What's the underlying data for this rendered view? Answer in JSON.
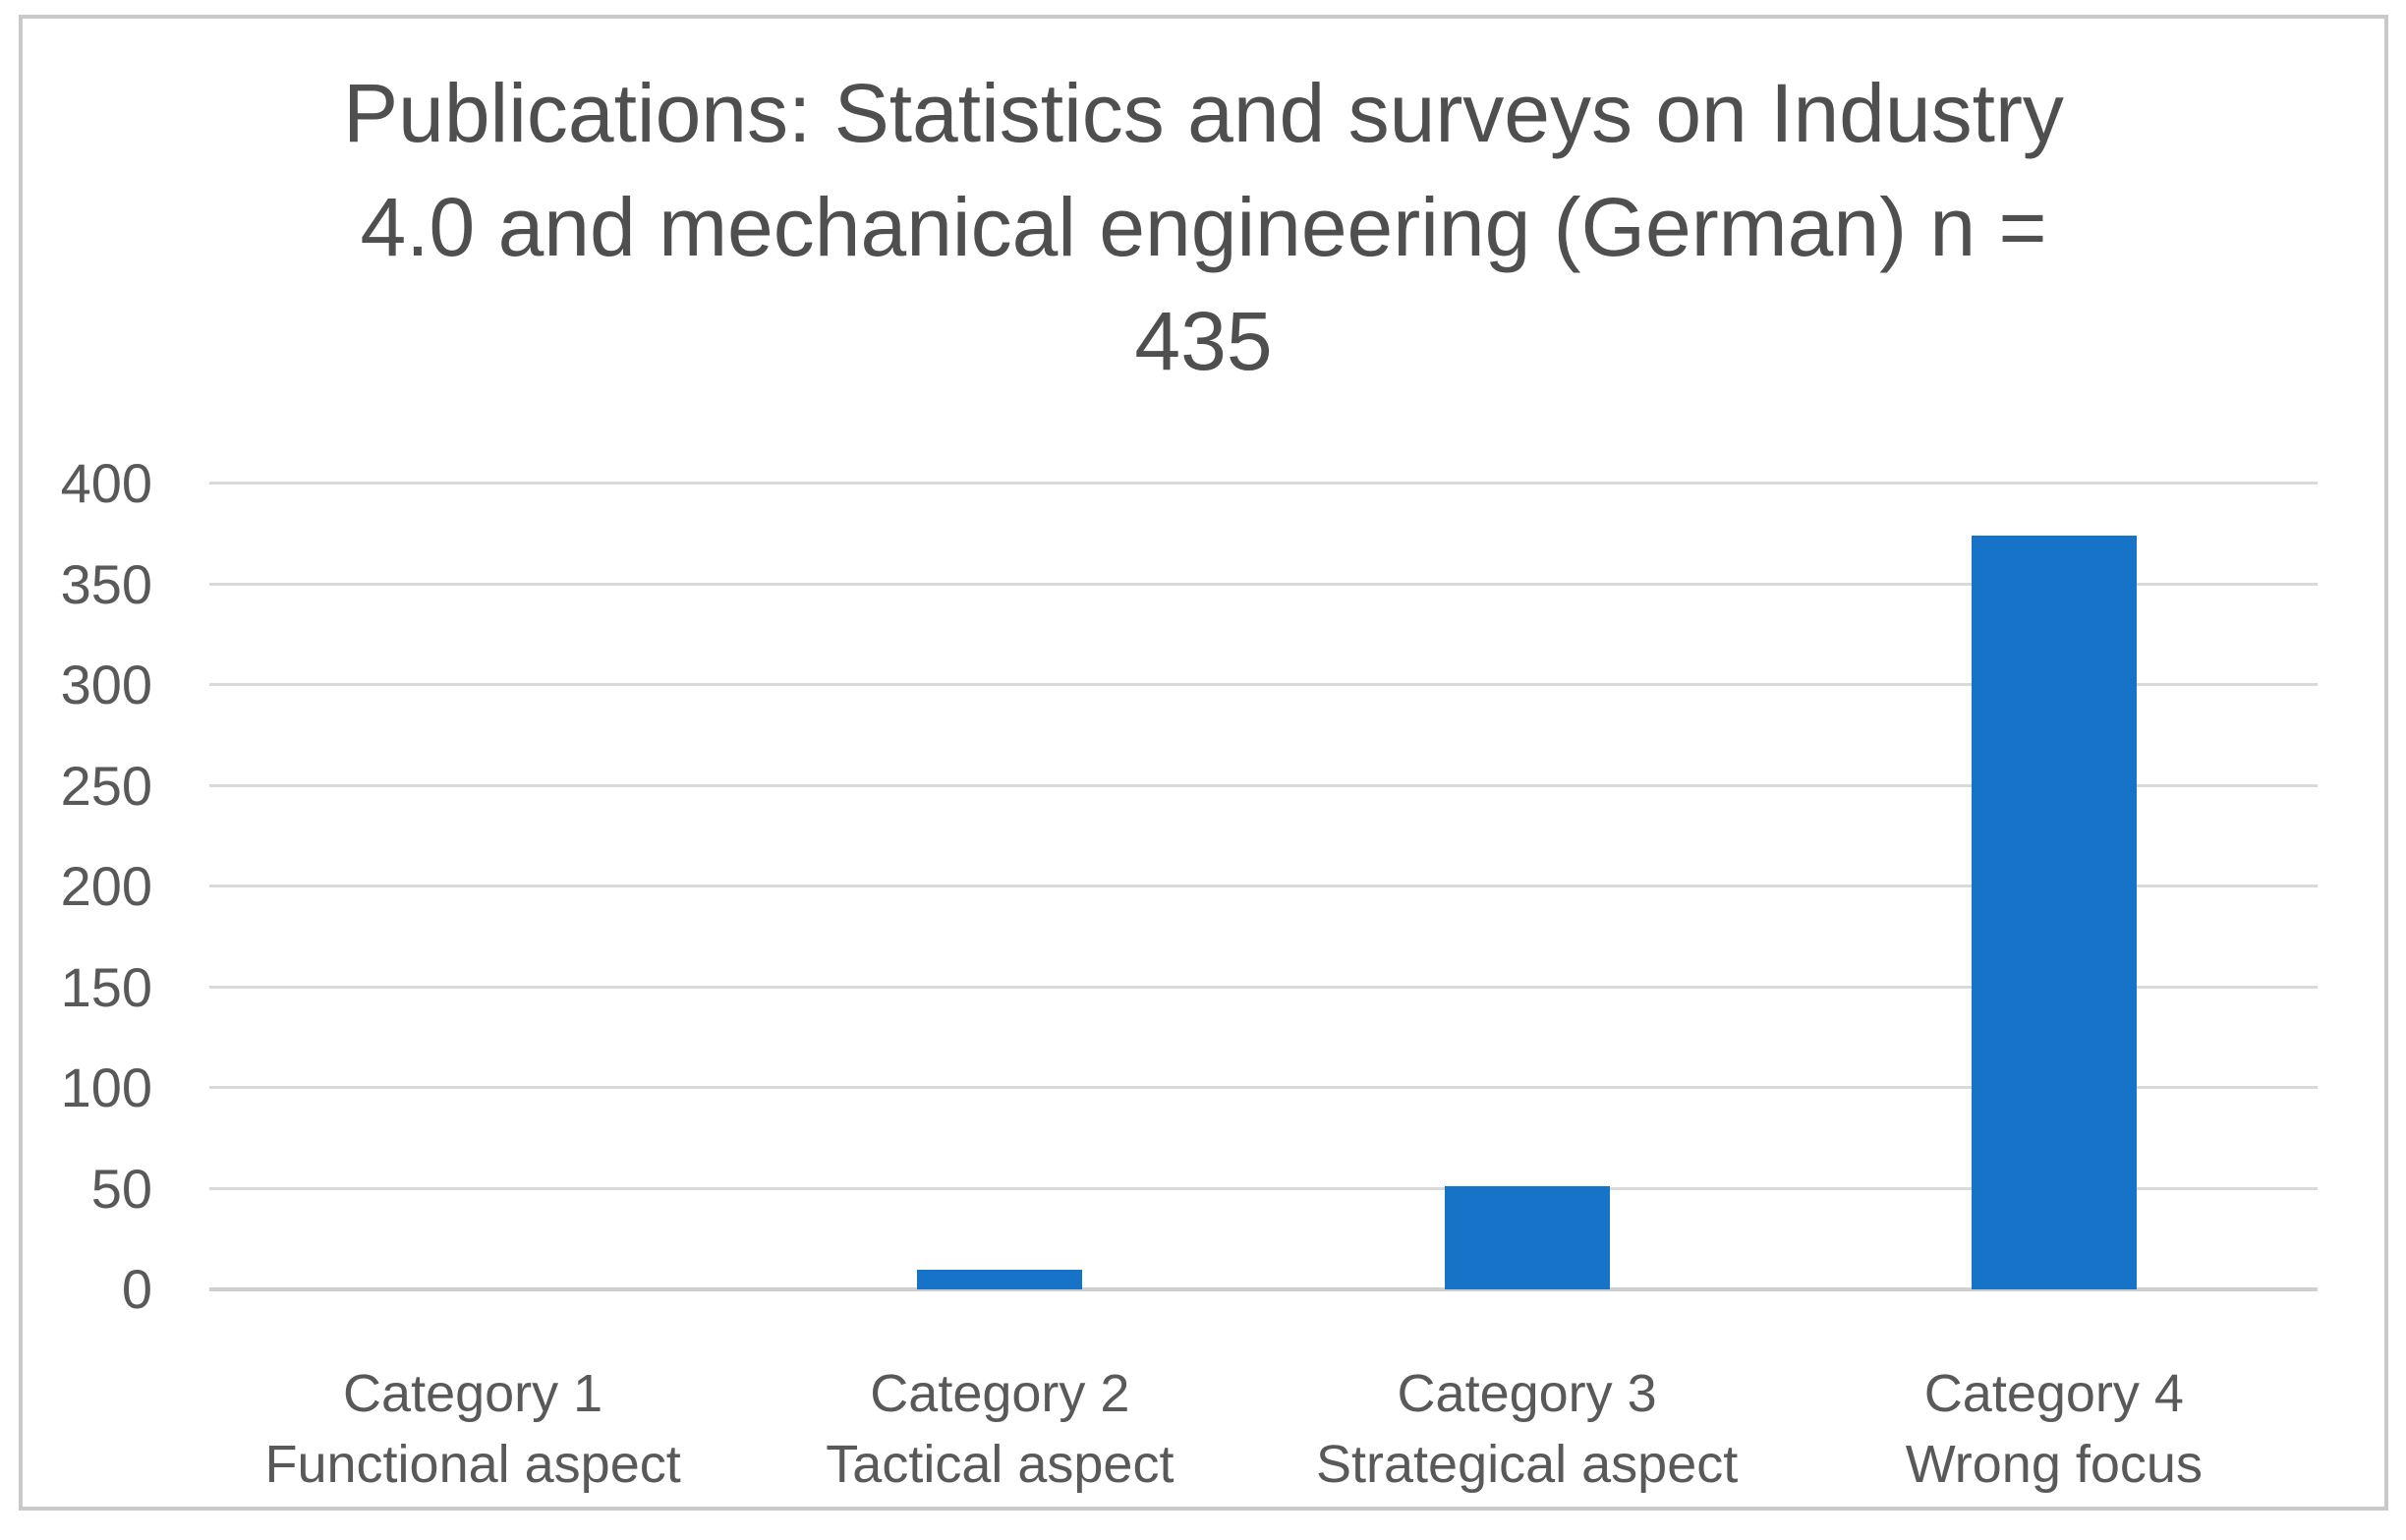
{
  "figure": {
    "background": "#ffffff",
    "border_color": "#c9c9c9"
  },
  "chart_data": {
    "type": "bar",
    "title": "Publications: Statistics and surveys on Industry 4.0 and mechanical engineering (German) n = 435",
    "title_lines": [
      "Publications: Statistics and surveys on Industry",
      "4.0 and mechanical engineering (German) n =",
      "435"
    ],
    "n": 435,
    "categories": [
      [
        "Category 1",
        "Functional aspect"
      ],
      [
        "Category 2",
        "Tactical aspect"
      ],
      [
        "Category 3",
        "Strategical aspect"
      ],
      [
        "Category 4",
        "Wrong focus"
      ]
    ],
    "values": [
      0,
      10,
      51,
      374
    ],
    "ylim": [
      0,
      400
    ],
    "yticks": [
      0,
      50,
      100,
      150,
      200,
      250,
      300,
      350,
      400
    ],
    "xlabel": "",
    "ylabel": "",
    "grid": "horizontal",
    "legend": "none",
    "bar_color": "#1673c8",
    "gridline_color": "#d9d9d9",
    "axis_line_color": "#cfcfcf",
    "tick_text_color": "#595959",
    "title_text_color": "#4f4f4f"
  }
}
